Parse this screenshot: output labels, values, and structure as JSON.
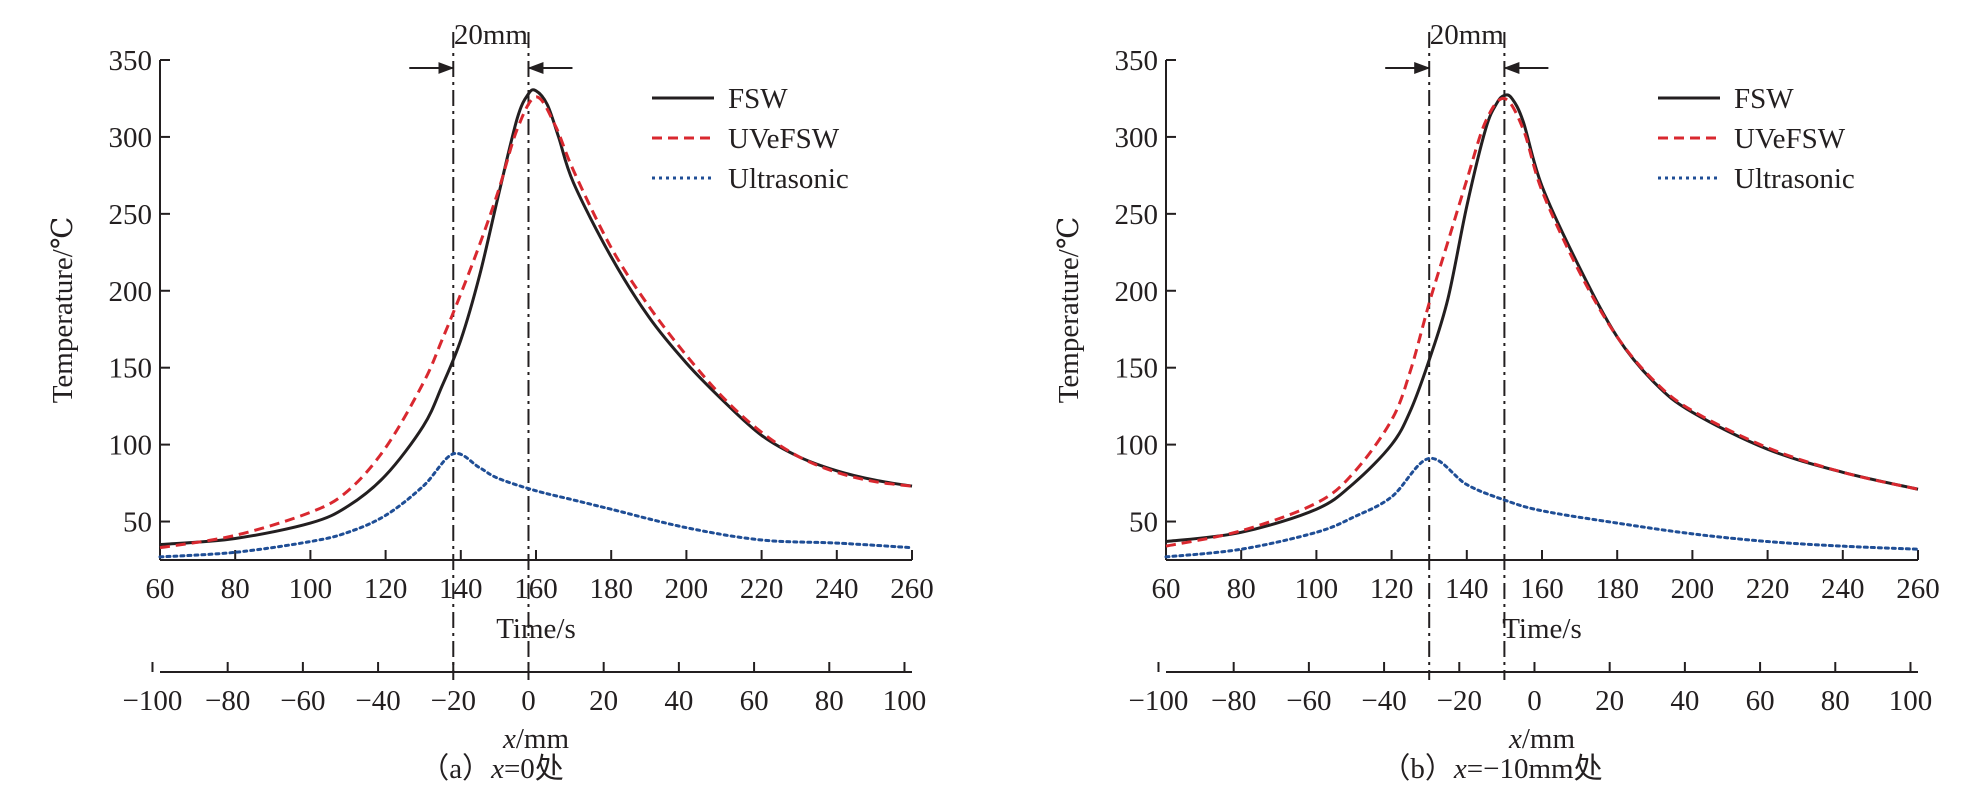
{
  "figure": {
    "colors": {
      "axis": "#231f20",
      "fsw": "#231f20",
      "uvefsw": "#d9282f",
      "ultrasonic": "#1f4e96"
    },
    "icons": {
      "arrow": "arrowhead-icon"
    }
  },
  "chart_data": [
    {
      "type": "line",
      "caption": "（a）x=0处",
      "caption_parts": {
        "open": "（a）",
        "var": "x",
        "rest": "=0处"
      },
      "annotation": "20mm",
      "xlabel": "Time/s",
      "ylabel": "Temperature/℃",
      "x2label": {
        "var": "x",
        "unit": "/mm"
      },
      "xlim": [
        60,
        260
      ],
      "ylim": [
        25,
        350
      ],
      "x_ticks": [
        60,
        80,
        100,
        120,
        140,
        160,
        180,
        200,
        220,
        240,
        260
      ],
      "y_ticks": [
        50,
        100,
        150,
        200,
        250,
        300,
        350
      ],
      "x2_ticks": [
        -100,
        -80,
        -60,
        -40,
        -20,
        0,
        20,
        40,
        60,
        80,
        100
      ],
      "x2_tick_labels": [
        "−100",
        "−80",
        "−60",
        "−40",
        "−20",
        "0",
        "20",
        "40",
        "60",
        "80",
        "100"
      ],
      "x2_offset_s": 158,
      "x2_scale": 1.0,
      "vlines_time": [
        138,
        158
      ],
      "legend": [
        "FSW",
        "UVeFSW",
        "Ultrasonic"
      ],
      "series": [
        {
          "name": "FSW",
          "style": "solid",
          "x": [
            60,
            80,
            100,
            110,
            120,
            130,
            135,
            140,
            145,
            150,
            155,
            158,
            160,
            163,
            166,
            170,
            180,
            190,
            200,
            210,
            220,
            230,
            240,
            250,
            260
          ],
          "y": [
            35,
            39,
            49,
            60,
            80,
            112,
            138,
            168,
            210,
            262,
            312,
            328,
            330,
            321,
            300,
            270,
            222,
            183,
            153,
            128,
            106,
            92,
            83,
            77,
            73
          ]
        },
        {
          "name": "UVeFSW",
          "style": "dashed",
          "x": [
            60,
            80,
            100,
            110,
            120,
            130,
            135,
            140,
            145,
            150,
            155,
            160,
            165,
            170,
            180,
            190,
            200,
            210,
            220,
            230,
            240,
            250,
            260
          ],
          "y": [
            33,
            41,
            56,
            70,
            98,
            140,
            168,
            198,
            230,
            265,
            305,
            326,
            308,
            278,
            228,
            190,
            158,
            130,
            108,
            92,
            82,
            76,
            73
          ]
        },
        {
          "name": "Ultrasonic",
          "style": "dotted",
          "x": [
            60,
            80,
            100,
            110,
            120,
            130,
            138,
            145,
            150,
            160,
            170,
            180,
            200,
            220,
            240,
            260
          ],
          "y": [
            27,
            30,
            37,
            43,
            54,
            73,
            94,
            85,
            78,
            70,
            64,
            58,
            46,
            38,
            36,
            33
          ]
        }
      ]
    },
    {
      "type": "line",
      "caption": "（b）x=−10mm处",
      "caption_parts": {
        "open": "（b）",
        "var": "x",
        "rest": "=−10mm处"
      },
      "annotation": "20mm",
      "xlabel": "Time/s",
      "ylabel": "Temperature/℃",
      "x2label": {
        "var": "x",
        "unit": "/mm"
      },
      "xlim": [
        60,
        260
      ],
      "ylim": [
        25,
        350
      ],
      "x_ticks": [
        60,
        80,
        100,
        120,
        140,
        160,
        180,
        200,
        220,
        240,
        260
      ],
      "y_ticks": [
        50,
        100,
        150,
        200,
        250,
        300,
        350
      ],
      "x2_ticks": [
        -100,
        -80,
        -60,
        -40,
        -20,
        0,
        20,
        40,
        60,
        80,
        100
      ],
      "x2_tick_labels": [
        "−100",
        "−80",
        "−60",
        "−40",
        "−20",
        "0",
        "20",
        "40",
        "60",
        "80",
        "100"
      ],
      "x2_offset_s": 158,
      "x2_scale": 1.0,
      "vlines_time": [
        130,
        150
      ],
      "legend": [
        "FSW",
        "UVeFSW",
        "Ultrasonic"
      ],
      "series": [
        {
          "name": "FSW",
          "style": "solid",
          "x": [
            60,
            80,
            100,
            110,
            120,
            125,
            130,
            135,
            140,
            145,
            148,
            150,
            152,
            155,
            160,
            170,
            180,
            190,
            200,
            220,
            240,
            260
          ],
          "y": [
            37,
            43,
            58,
            75,
            100,
            122,
            155,
            195,
            255,
            305,
            322,
            327,
            325,
            310,
            268,
            215,
            170,
            140,
            121,
            97,
            82,
            71
          ]
        },
        {
          "name": "UVeFSW",
          "style": "dashed",
          "x": [
            60,
            80,
            100,
            110,
            120,
            125,
            130,
            135,
            140,
            145,
            150,
            155,
            160,
            170,
            180,
            190,
            200,
            220,
            240,
            260
          ],
          "y": [
            34,
            44,
            62,
            82,
            116,
            148,
            192,
            232,
            272,
            310,
            325,
            305,
            265,
            212,
            170,
            141,
            122,
            98,
            82,
            71
          ]
        },
        {
          "name": "Ultrasonic",
          "style": "dotted",
          "x": [
            60,
            80,
            100,
            110,
            120,
            130,
            140,
            150,
            160,
            180,
            200,
            220,
            240,
            260
          ],
          "y": [
            27,
            32,
            43,
            53,
            66,
            91,
            74,
            64,
            57,
            49,
            42,
            37,
            34,
            32
          ]
        }
      ]
    }
  ]
}
